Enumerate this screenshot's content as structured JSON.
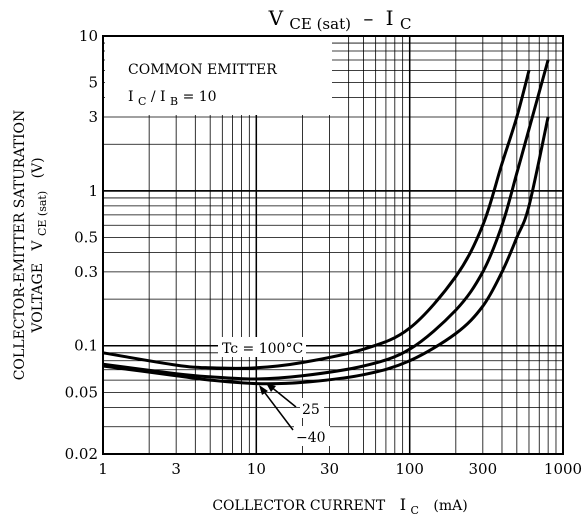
{
  "chart_data": {
    "type": "line",
    "title": {
      "main": "V",
      "main_sub": "CE (sat)",
      "dash": "–",
      "var": "I",
      "var_sub": "C"
    },
    "x_axis": {
      "scale": "log",
      "range": [
        1,
        1000
      ],
      "ticks": [
        "1",
        "3",
        "10",
        "30",
        "100",
        "300",
        "1000"
      ],
      "tick_values": [
        1,
        3,
        10,
        30,
        100,
        300,
        1000
      ],
      "label": {
        "main": "COLLECTOR CURRENT",
        "sym": "I",
        "sym_sub": "C",
        "unit": "(mA)"
      }
    },
    "y_axis": {
      "scale": "log",
      "range": [
        0.02,
        10
      ],
      "ticks": [
        "0.02",
        "0.05",
        "0.1",
        "0.3",
        "0.5",
        "1",
        "3",
        "5",
        "10"
      ],
      "tick_values": [
        0.02,
        0.05,
        0.1,
        0.3,
        0.5,
        1,
        3,
        5,
        10
      ],
      "label_line1": "COLLECTOR-EMITTER SATURATION",
      "label_line2": {
        "main": "VOLTAGE",
        "sym": "V",
        "sym_sub": "CE (sat)",
        "unit": "(V)"
      }
    },
    "grid": true,
    "legend_box": {
      "line1": "COMMON EMITTER",
      "line2": {
        "sym": "I",
        "sub": "C",
        "slash": "/",
        "sym2": "I",
        "sub2": "B",
        "rest": " = 10"
      }
    },
    "series": [
      {
        "name": "Tc = 100°C",
        "x": [
          1,
          3,
          5,
          10,
          20,
          50,
          100,
          200,
          300,
          400,
          500,
          600
        ],
        "y": [
          0.09,
          0.075,
          0.072,
          0.072,
          0.078,
          0.095,
          0.13,
          0.28,
          0.6,
          1.5,
          3.0,
          6.0
        ]
      },
      {
        "name": "25",
        "x": [
          1,
          3,
          5,
          10,
          20,
          50,
          100,
          200,
          300,
          400,
          500,
          600,
          800
        ],
        "y": [
          0.076,
          0.066,
          0.063,
          0.061,
          0.064,
          0.074,
          0.095,
          0.17,
          0.3,
          0.6,
          1.3,
          2.5,
          7.0
        ]
      },
      {
        "name": "−40",
        "x": [
          1,
          3,
          5,
          10,
          20,
          50,
          100,
          200,
          300,
          400,
          500,
          600,
          800
        ],
        "y": [
          0.074,
          0.064,
          0.06,
          0.057,
          0.058,
          0.065,
          0.08,
          0.12,
          0.18,
          0.3,
          0.5,
          0.8,
          3.0
        ]
      }
    ]
  }
}
